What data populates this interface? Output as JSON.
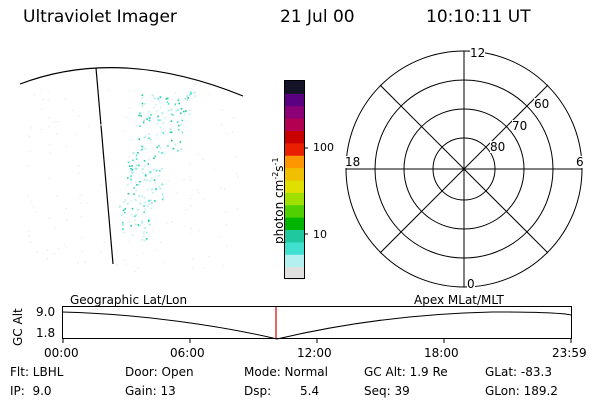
{
  "header": {
    "title": "Ultraviolet Imager",
    "date": "21 Jul 00",
    "time": "10:10:11 UT"
  },
  "colorbar": {
    "label": "photon cm",
    "label_sup1": "-2",
    "label_mid": "s",
    "label_sup2": "-1",
    "tick_100": "100",
    "tick_10": "10",
    "colors": [
      "#e0e0e0",
      "#b4f0f0",
      "#40e0d0",
      "#20c8a0",
      "#00b400",
      "#50d000",
      "#a0e000",
      "#e0e000",
      "#f0c000",
      "#ff9600",
      "#e82000",
      "#c80000",
      "#b40050",
      "#8c0078",
      "#5a0080",
      "#141428"
    ]
  },
  "polar_plot": {
    "mlt_12": "12",
    "mlt_18": "18",
    "mlt_6": "6",
    "mlt_0": "0",
    "lat_60": "60",
    "lat_70": "70",
    "lat_80": "80"
  },
  "altitude_strip": {
    "ylabel": "GC Alt",
    "ytick_top": "9.0",
    "ytick_bottom": "1.8",
    "left_label": "Geographic Lat/Lon",
    "right_label": "Apex MLat/MLT",
    "xticks": [
      "00:00",
      "06:00",
      "12:00",
      "18:00",
      "23:59"
    ],
    "marker_color": "#dd0000"
  },
  "status": {
    "flt": "Flt: LBHL",
    "ip": "IP:  9.0",
    "door": "Door: Open",
    "gain": "Gain: 13",
    "mode": "Mode: Normal",
    "dsp_label": "Dsp:",
    "dsp_value": "5.4",
    "gc_alt": "GC Alt: 1.9 Re",
    "seq": "Seq: 39",
    "glat": "GLat: -83.3",
    "glon": "GLon: 189.2"
  }
}
